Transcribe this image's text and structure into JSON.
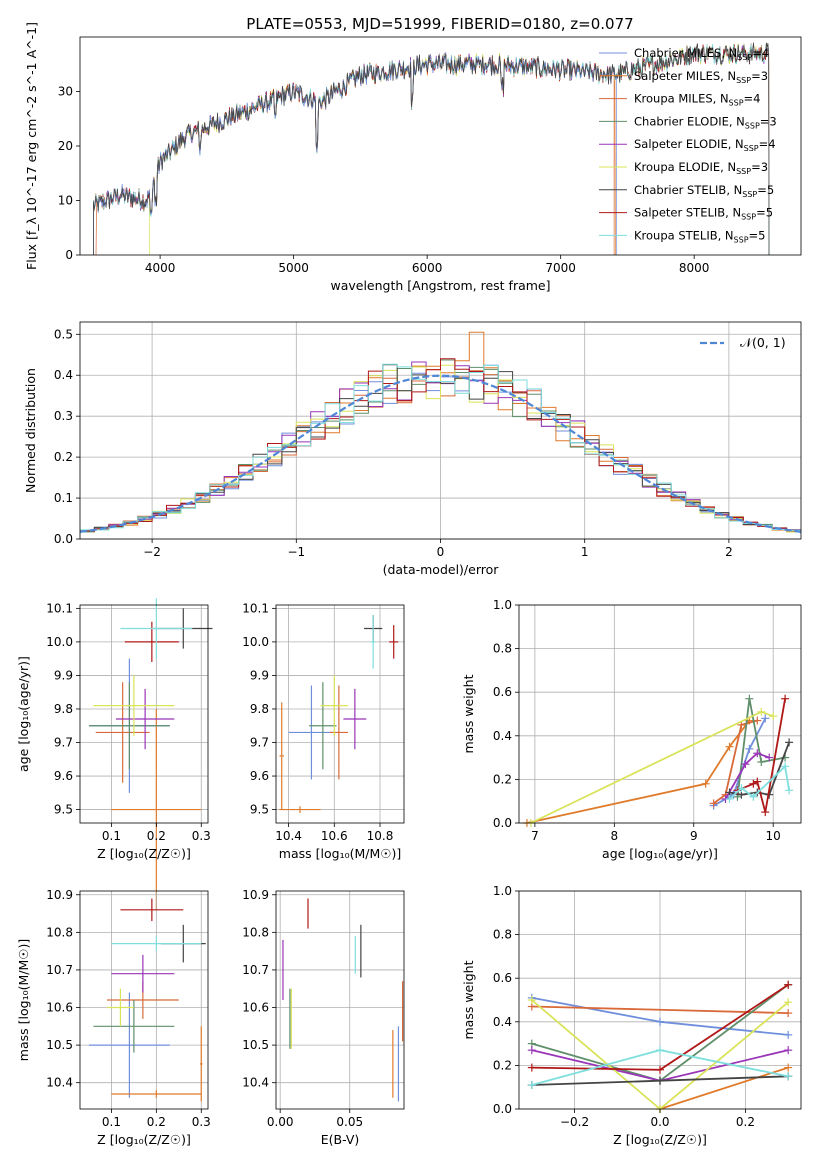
{
  "figure_title": "PLATE=0553, MJD=51999, FIBERID=0180, z=0.077",
  "series_colors": [
    "#6f8fdc",
    "#e07b2b",
    "#d86a3a",
    "#5f8f6a",
    "#9a35b8",
    "#d9e35a",
    "#444444",
    "#b01818",
    "#7fdede"
  ],
  "chart_data": [
    {
      "id": "spectrum",
      "type": "line",
      "xlabel": "wavelength [Angstrom, rest frame]",
      "ylabel": "Flux [f_λ 10^-17 erg cm^-2 s^-1 A^-1]",
      "xlim": [
        3400,
        8800
      ],
      "ylim": [
        0,
        40
      ],
      "xticks": [
        4000,
        5000,
        6000,
        7000,
        8000
      ],
      "yticks": [
        0,
        10,
        20,
        30
      ],
      "grid": false,
      "legend": "upper right",
      "legend_entries": [
        "Chabrier MILES, N_SSP=4",
        "Salpeter MILES, N_SSP=3",
        "Kroupa MILES, N_SSP=4",
        "Chabrier ELODIE, N_SSP=3",
        "Salpeter ELODIE, N_SSP=4",
        "Kroupa ELODIE, N_SSP=3",
        "Chabrier STELIB, N_SSP=5",
        "Salpeter STELIB, N_SSP=5",
        "Kroupa STELIB, N_SSP=5"
      ],
      "continuum": {
        "x": [
          3500,
          3700,
          3900,
          4000,
          4200,
          4500,
          5000,
          5200,
          5500,
          6000,
          6500,
          7000,
          7400,
          8000,
          8600
        ],
        "y": [
          9,
          11,
          10,
          17,
          22,
          25,
          30,
          28,
          33,
          35,
          35,
          34,
          33,
          37,
          37
        ]
      },
      "ranges": [
        [
          3500,
          7420
        ],
        [
          3500,
          7410
        ],
        [
          3520,
          7400
        ],
        [
          3500,
          8560
        ],
        [
          3500,
          8560
        ],
        [
          3920,
          8560
        ],
        [
          3500,
          8560
        ],
        [
          3500,
          8560
        ],
        [
          3500,
          8560
        ]
      ]
    },
    {
      "id": "residuals",
      "type": "histogram",
      "xlabel": "(data-model)/error",
      "ylabel": "Normed distribution",
      "xlim": [
        -2.5,
        2.5
      ],
      "ylim": [
        0,
        0.53
      ],
      "xticks": [
        -2,
        -1,
        0,
        1,
        2
      ],
      "yticks": [
        0.0,
        0.1,
        0.2,
        0.3,
        0.4,
        0.5
      ],
      "grid": true,
      "legend": "upper right",
      "reference_curve": "N(0,1)",
      "reference_label": "𝒩(0, 1)",
      "bin_width": 0.1
    },
    {
      "id": "age_vs_Z",
      "type": "errorbar",
      "xlabel": "Z [log₁₀(Z/Z☉)]",
      "ylabel": "age  [log₁₀(age/yr)]",
      "xlim": [
        0.03,
        0.315
      ],
      "ylim": [
        9.46,
        10.11
      ],
      "xticks": [
        0.1,
        0.2,
        0.3
      ],
      "yticks": [
        9.5,
        9.6,
        9.7,
        9.8,
        9.9,
        10.0,
        10.1
      ],
      "grid": true,
      "points": [
        {
          "x": 0.14,
          "xe": 0.09,
          "y": 9.75,
          "ye": 0.2,
          "c": 0
        },
        {
          "x": 0.2,
          "xe": 0.1,
          "y": 9.5,
          "ye": 0.3,
          "c": 1
        },
        {
          "x": 0.125,
          "xe": 0.06,
          "y": 9.73,
          "ye": 0.15,
          "c": 2
        },
        {
          "x": 0.14,
          "xe": 0.09,
          "y": 9.75,
          "ye": 0.13,
          "c": 3
        },
        {
          "x": 0.175,
          "xe": 0.065,
          "y": 9.77,
          "ye": 0.09,
          "c": 4
        },
        {
          "x": 0.15,
          "xe": 0.09,
          "y": 9.81,
          "ye": 0.09,
          "c": 5
        },
        {
          "x": 0.26,
          "xe": 0.065,
          "y": 10.04,
          "ye": 0.06,
          "c": 6
        },
        {
          "x": 0.19,
          "xe": 0.06,
          "y": 10.0,
          "ye": 0.06,
          "c": 7
        },
        {
          "x": 0.2,
          "xe": 0.08,
          "y": 10.04,
          "ye": 0.09,
          "c": 8
        }
      ]
    },
    {
      "id": "age_vs_mass",
      "type": "errorbar",
      "xlabel": "mass [log₁₀(M/M☉)]",
      "ylabel": "",
      "xlim": [
        10.345,
        10.905
      ],
      "ylim": [
        9.46,
        10.11
      ],
      "xticks": [
        10.4,
        10.6,
        10.8
      ],
      "yticks": [
        9.5,
        9.6,
        9.7,
        9.8,
        9.9,
        10.0,
        10.1
      ],
      "grid": true,
      "points": [
        {
          "x": 10.5,
          "xe": 0.1,
          "y": 9.73,
          "ye": 0.14,
          "c": 0
        },
        {
          "x": 10.37,
          "xe": 0.01,
          "y": 9.66,
          "ye": 0.16,
          "c": 1
        },
        {
          "x": 10.45,
          "xe": 0.09,
          "y": 9.5,
          "ye": 0.01,
          "c": 1
        },
        {
          "x": 10.62,
          "xe": 0.04,
          "y": 9.73,
          "ye": 0.14,
          "c": 2
        },
        {
          "x": 10.55,
          "xe": 0.06,
          "y": 9.75,
          "ye": 0.13,
          "c": 3
        },
        {
          "x": 10.69,
          "xe": 0.05,
          "y": 9.77,
          "ye": 0.09,
          "c": 4
        },
        {
          "x": 10.6,
          "xe": 0.06,
          "y": 9.81,
          "ye": 0.09,
          "c": 5
        },
        {
          "x": 10.77,
          "xe": 0.04,
          "y": 10.04,
          "ye": 0.04,
          "c": 6
        },
        {
          "x": 10.86,
          "xe": 0.02,
          "y": 10.0,
          "ye": 0.05,
          "c": 7
        },
        {
          "x": 10.77,
          "xe": 0.01,
          "y": 10.0,
          "ye": 0.08,
          "c": 8
        }
      ]
    },
    {
      "id": "weight_vs_age",
      "type": "line",
      "xlabel": "age  [log₁₀(age/yr)]",
      "ylabel": "mass weight",
      "xlim": [
        6.8,
        10.35
      ],
      "ylim": [
        0,
        1
      ],
      "xticks": [
        7,
        8,
        9,
        10
      ],
      "yticks": [
        0.0,
        0.2,
        0.4,
        0.6,
        0.8,
        1.0
      ],
      "grid": true,
      "series": [
        {
          "c": 0,
          "x": [
            9.25,
            9.5,
            9.7,
            9.9
          ],
          "y": [
            0.08,
            0.13,
            0.34,
            0.48
          ]
        },
        {
          "c": 1,
          "x": [
            6.9,
            9.15,
            9.45,
            9.7
          ],
          "y": [
            0.0,
            0.18,
            0.35,
            0.47
          ]
        },
        {
          "c": 2,
          "x": [
            9.25,
            9.4,
            9.6,
            9.8
          ],
          "y": [
            0.09,
            0.13,
            0.45,
            0.47
          ]
        },
        {
          "c": 3,
          "x": [
            9.55,
            9.7,
            9.85,
            10.15
          ],
          "y": [
            0.12,
            0.57,
            0.28,
            0.3
          ]
        },
        {
          "c": 4,
          "x": [
            9.4,
            9.65,
            9.8,
            9.95
          ],
          "y": [
            0.11,
            0.27,
            0.32,
            0.3
          ]
        },
        {
          "c": 5,
          "x": [
            6.95,
            9.85,
            10.0
          ],
          "y": [
            0.0,
            0.51,
            0.49
          ]
        },
        {
          "c": 6,
          "x": [
            9.45,
            9.6,
            9.8,
            9.95,
            10.2
          ],
          "y": [
            0.14,
            0.13,
            0.14,
            0.13,
            0.37
          ]
        },
        {
          "c": 7,
          "x": [
            9.55,
            9.75,
            9.8,
            9.9,
            10.15
          ],
          "y": [
            0.15,
            0.18,
            0.19,
            0.05,
            0.57
          ]
        },
        {
          "c": 8,
          "x": [
            9.45,
            9.6,
            9.75,
            10.15,
            10.2
          ],
          "y": [
            0.11,
            0.16,
            0.12,
            0.26,
            0.15
          ]
        }
      ]
    },
    {
      "id": "mass_vs_Z",
      "type": "errorbar",
      "xlabel": "Z [log₁₀(Z/Z☉)]",
      "ylabel": "mass [log₁₀(M/M☉)]",
      "xlim": [
        0.03,
        0.315
      ],
      "ylim": [
        10.33,
        10.91
      ],
      "xticks": [
        0.1,
        0.2,
        0.3
      ],
      "yticks": [
        10.4,
        10.5,
        10.6,
        10.7,
        10.8,
        10.9
      ],
      "grid": true,
      "points": [
        {
          "x": 0.14,
          "xe": 0.09,
          "y": 10.5,
          "ye": 0.14,
          "c": 0
        },
        {
          "x": 0.2,
          "xe": 0.1,
          "y": 10.37,
          "ye": 0.01,
          "c": 1
        },
        {
          "x": 0.3,
          "xe": 0.003,
          "y": 10.45,
          "ye": 0.1,
          "c": 1
        },
        {
          "x": 0.17,
          "xe": 0.08,
          "y": 10.62,
          "ye": 0.05,
          "c": 2
        },
        {
          "x": 0.15,
          "xe": 0.09,
          "y": 10.55,
          "ye": 0.07,
          "c": 3
        },
        {
          "x": 0.17,
          "xe": 0.07,
          "y": 10.69,
          "ye": 0.05,
          "c": 4
        },
        {
          "x": 0.12,
          "xe": 0.03,
          "y": 10.6,
          "ye": 0.05,
          "c": 5
        },
        {
          "x": 0.26,
          "xe": 0.05,
          "y": 10.77,
          "ye": 0.05,
          "c": 6
        },
        {
          "x": 0.19,
          "xe": 0.07,
          "y": 10.86,
          "ye": 0.03,
          "c": 7
        },
        {
          "x": 0.2,
          "xe": 0.1,
          "y": 10.77,
          "ye": 0.02,
          "c": 8
        }
      ]
    },
    {
      "id": "mass_vs_ebv",
      "type": "errorbar",
      "xlabel": "E(B-V)",
      "ylabel": "",
      "xlim": [
        -0.003,
        0.089
      ],
      "ylim": [
        10.33,
        10.91
      ],
      "xticks": [
        0.0,
        0.05
      ],
      "yticks": [
        10.4,
        10.5,
        10.6,
        10.7,
        10.8,
        10.9
      ],
      "grid": true,
      "points": [
        {
          "x": 0.085,
          "xe": 0.0,
          "y": 10.45,
          "ye": 0.1,
          "c": 0
        },
        {
          "x": 0.081,
          "xe": 0.0,
          "y": 10.45,
          "ye": 0.09,
          "c": 1
        },
        {
          "x": 0.088,
          "xe": 0.0,
          "y": 10.59,
          "ye": 0.08,
          "c": 2
        },
        {
          "x": 0.007,
          "xe": 0.0,
          "y": 10.57,
          "ye": 0.08,
          "c": 3
        },
        {
          "x": 0.002,
          "xe": 0.0,
          "y": 10.7,
          "ye": 0.08,
          "c": 4
        },
        {
          "x": 0.008,
          "xe": 0.0,
          "y": 10.57,
          "ye": 0.08,
          "c": 5
        },
        {
          "x": 0.058,
          "xe": 0.0,
          "y": 10.75,
          "ye": 0.07,
          "c": 6
        },
        {
          "x": 0.02,
          "xe": 0.0,
          "y": 10.85,
          "ye": 0.04,
          "c": 7
        },
        {
          "x": 0.054,
          "xe": 0.0,
          "y": 10.74,
          "ye": 0.05,
          "c": 8
        }
      ]
    },
    {
      "id": "weight_vs_Z",
      "type": "line",
      "xlabel": "Z [log₁₀(Z/Z☉)]",
      "ylabel": "mass weight",
      "xlim": [
        -0.33,
        0.33
      ],
      "ylim": [
        0,
        1
      ],
      "xticks": [
        -0.2,
        0.0,
        0.2
      ],
      "yticks": [
        0.0,
        0.2,
        0.4,
        0.6,
        0.8,
        1.0
      ],
      "grid": true,
      "series": [
        {
          "c": 0,
          "x": [
            -0.3,
            0.0,
            0.3
          ],
          "y": [
            0.51,
            0.4,
            0.34
          ]
        },
        {
          "c": 1,
          "x": [
            0.0,
            0.3
          ],
          "y": [
            0.0,
            0.19
          ]
        },
        {
          "c": 2,
          "x": [
            -0.3,
            0.3
          ],
          "y": [
            0.47,
            0.44
          ]
        },
        {
          "c": 3,
          "x": [
            -0.3,
            0.0,
            0.3
          ],
          "y": [
            0.3,
            0.13,
            0.57
          ]
        },
        {
          "c": 4,
          "x": [
            -0.3,
            0.0,
            0.3
          ],
          "y": [
            0.27,
            0.13,
            0.27
          ]
        },
        {
          "c": 5,
          "x": [
            -0.3,
            0.0,
            0.3
          ],
          "y": [
            0.5,
            0.0,
            0.49
          ]
        },
        {
          "c": 6,
          "x": [
            -0.3,
            0.0,
            0.3
          ],
          "y": [
            0.11,
            0.13,
            0.15
          ]
        },
        {
          "c": 7,
          "x": [
            -0.3,
            0.0,
            0.3
          ],
          "y": [
            0.19,
            0.18,
            0.57
          ]
        },
        {
          "c": 8,
          "x": [
            -0.3,
            0.0,
            0.3
          ],
          "y": [
            0.11,
            0.27,
            0.15
          ]
        }
      ]
    }
  ]
}
